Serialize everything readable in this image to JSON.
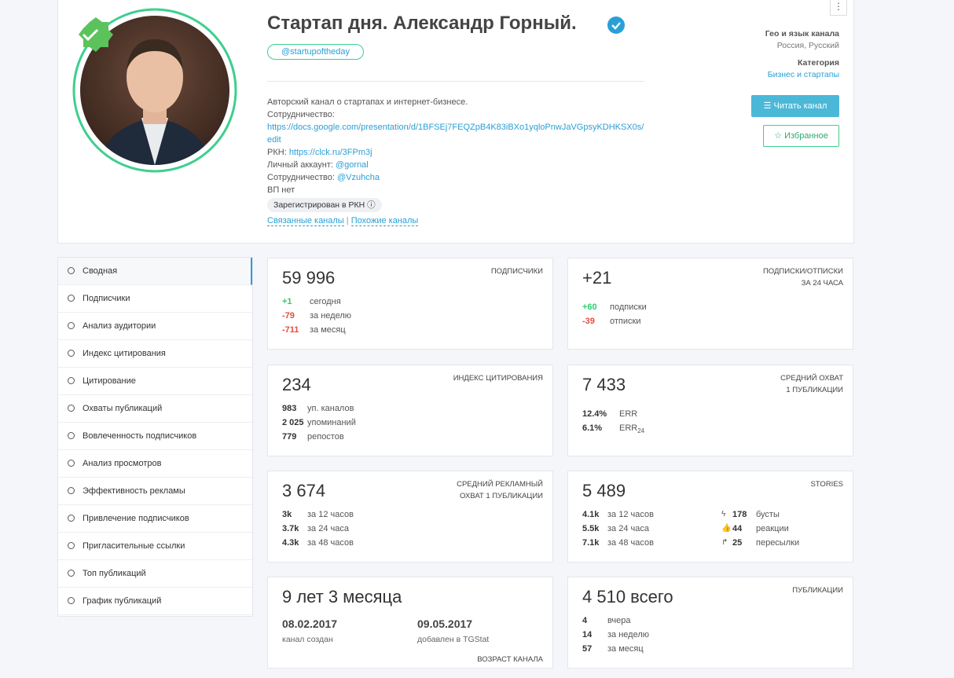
{
  "header": {
    "title": "Стартап дня. Александр Горный.",
    "handle": "@startupoftheday",
    "description": "Авторский канал о стартапах и интернет-бизнесе.",
    "coop_label": "Сотрудничество:",
    "coop_link": "https://docs.google.com/presentation/d/1BFSEj7FEQZpB4K83iBXo1yqloPnwJaVGpsyKDHKSX0s/edit",
    "rkn_label": "РКН:",
    "rkn_link": "https://clck.ru/3FPm3j",
    "personal_label": "Личный аккаунт:",
    "personal_link": "@gornal",
    "coop2_label": "Сотрудничество:",
    "coop2_link": "@Vzuhcha",
    "vp": "ВП нет",
    "rkn_badge": "Зарегистрирован в РКН",
    "related": "Связанные каналы",
    "separator": "|",
    "similar": "Похожие каналы",
    "geo_label": "Гео и язык канала",
    "geo_value": "Россия, Русский",
    "category_label": "Категория",
    "category_value": "Бизнес и стартапы",
    "read_button": "Читать канал",
    "favorite_button": "Избранное"
  },
  "sidebar": [
    "Сводная",
    "Подписчики",
    "Анализ аудитории",
    "Индекс цитирования",
    "Цитирование",
    "Охваты публикаций",
    "Вовлеченность подписчиков",
    "Анализ просмотров",
    "Эффективность рекламы",
    "Привлечение подписчиков",
    "Пригласительные ссылки",
    "Топ публикаций",
    "График публикаций"
  ],
  "cards": {
    "subscribers": {
      "value": "59 996",
      "title": [
        "ПОДПИСЧИКИ"
      ],
      "rows": [
        [
          "+1",
          "сегодня"
        ],
        [
          "-79",
          "за неделю"
        ],
        [
          "-711",
          "за месяц"
        ]
      ]
    },
    "subs_unsubs": {
      "value": "+21",
      "title": [
        "ПОДПИСКИ/ОТПИСКИ",
        "ЗА 24 ЧАСА"
      ],
      "rows": [
        [
          "+60",
          "подписки"
        ],
        [
          "-39",
          "отписки"
        ]
      ]
    },
    "citation": {
      "value": "234",
      "title": [
        "ИНДЕКС ЦИТИРОВАНИЯ"
      ],
      "rows": [
        [
          "983",
          "уп. каналов"
        ],
        [
          "2 025",
          "упоминаний"
        ],
        [
          "779",
          "репостов"
        ]
      ]
    },
    "reach": {
      "value": "7 433",
      "title": [
        "СРЕДНИЙ ОХВАТ",
        "1 ПУБЛИКАЦИИ"
      ],
      "rows": [
        [
          "12.4%",
          "ERR"
        ],
        [
          "6.1%",
          "ERR",
          "24"
        ]
      ]
    },
    "ad_reach": {
      "value": "3 674",
      "title": [
        "СРЕДНИЙ РЕКЛАМНЫЙ",
        "ОХВАТ 1 ПУБЛИКАЦИИ"
      ],
      "rows": [
        [
          "3k",
          "за 12 часов"
        ],
        [
          "3.7k",
          "за 24 часа"
        ],
        [
          "4.3k",
          "за 48 часов"
        ]
      ]
    },
    "stories": {
      "value": "5 489",
      "title": [
        "STORIES"
      ],
      "rows": [
        [
          "4.1k",
          "за 12 часов"
        ],
        [
          "5.5k",
          "за 24 часа"
        ],
        [
          "7.1k",
          "за 48 часов"
        ]
      ],
      "rows_right": [
        [
          "178",
          "бусты"
        ],
        [
          "44",
          "реакции"
        ],
        [
          "25",
          "пересылки"
        ]
      ]
    },
    "age": {
      "value": "9 лет 3 месяца",
      "title": [
        "ВОЗРАСТ КАНАЛА"
      ],
      "dates": [
        [
          "08.02.2017",
          "канал создан"
        ],
        [
          "09.05.2017",
          "добавлен в TGStat"
        ]
      ]
    },
    "posts": {
      "value": "4 510 всего",
      "title": [
        "ПУБЛИКАЦИИ"
      ],
      "rows": [
        [
          "4",
          "вчера"
        ],
        [
          "14",
          "за неделю"
        ],
        [
          "57",
          "за месяц"
        ]
      ]
    }
  }
}
